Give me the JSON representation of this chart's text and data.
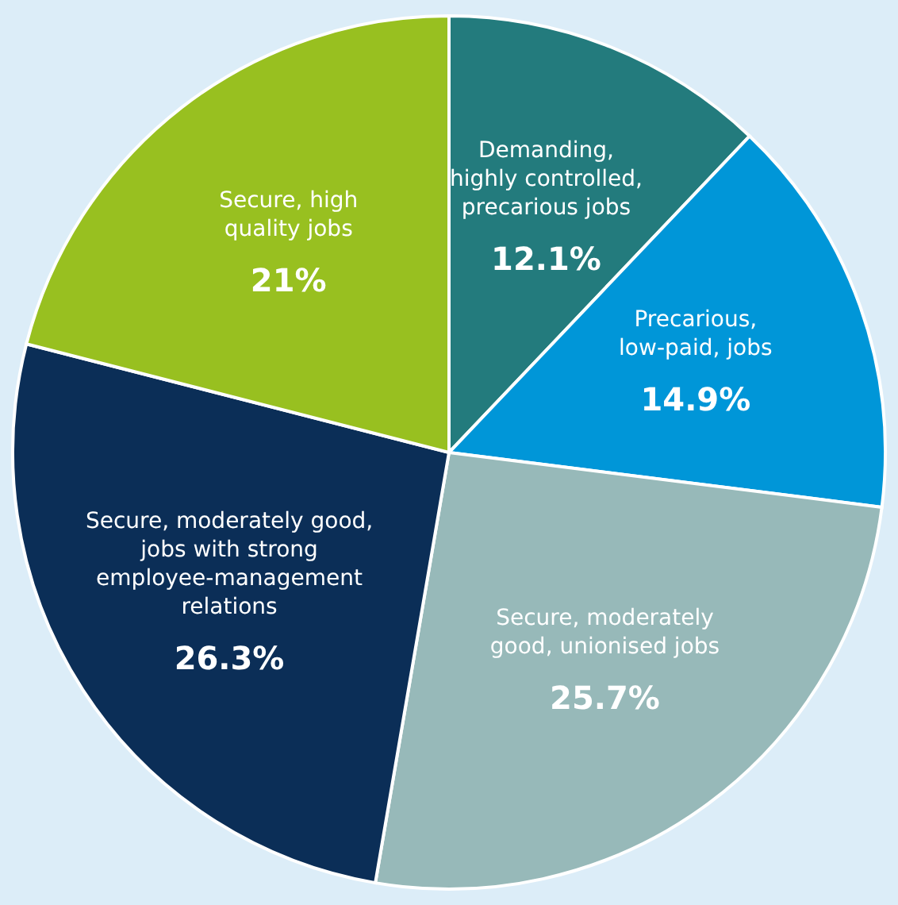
{
  "chart_data": {
    "type": "pie",
    "categories": [
      "Demanding,\nhighly controlled,\nprecarious jobs",
      "Precarious,\nlow-paid, jobs",
      "Secure, moderately\ngood, unionised jobs",
      "Secure, moderately good,\njobs with strong\nemployee-management\nrelations",
      "Secure, high\nquality jobs"
    ],
    "values": [
      12.1,
      14.9,
      25.7,
      26.3,
      21
    ],
    "colors": [
      "#237b7d",
      "#0096d8",
      "#97b9b9",
      "#0b2e57",
      "#98c020"
    ],
    "value_labels": [
      "12.1%",
      "14.9%",
      "25.7%",
      "26.3%",
      "21%"
    ]
  }
}
